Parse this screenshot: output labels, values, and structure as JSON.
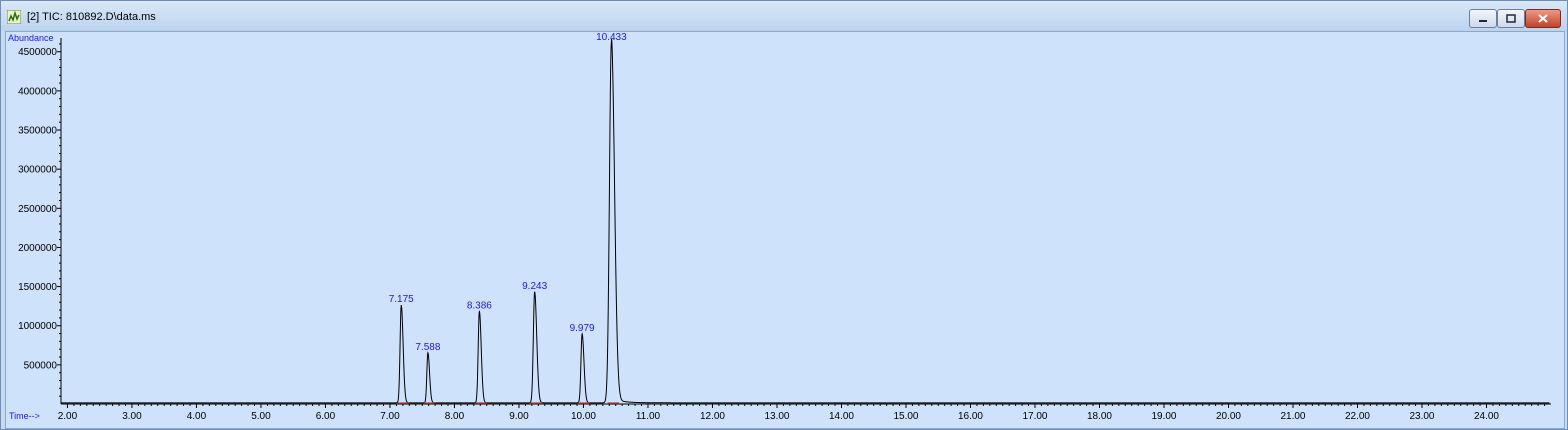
{
  "window": {
    "title": "[2] TIC: 810892.D\\data.ms",
    "icon": "chromatogram-icon"
  },
  "chart_data": {
    "type": "line",
    "title": "",
    "xlabel": "Time-->",
    "ylabel": "Abundance",
    "xlim": [
      1.9,
      25.0
    ],
    "ylim": [
      0,
      4650000
    ],
    "x_ticks": [
      "2.00",
      "3.00",
      "4.00",
      "5.00",
      "6.00",
      "7.00",
      "8.00",
      "9.00",
      "10.00",
      "11.00",
      "12.00",
      "13.00",
      "14.00",
      "15.00",
      "16.00",
      "17.00",
      "18.00",
      "19.00",
      "20.00",
      "21.00",
      "22.00",
      "23.00",
      "24.00"
    ],
    "y_ticks": [
      "500000",
      "1000000",
      "1500000",
      "2000000",
      "2500000",
      "3000000",
      "3500000",
      "4000000",
      "4500000"
    ],
    "peaks": [
      {
        "rt": 7.175,
        "label": "7.175",
        "abundance": 1250000
      },
      {
        "rt": 7.588,
        "label": "7.588",
        "abundance": 640000
      },
      {
        "rt": 8.386,
        "label": "8.386",
        "abundance": 1170000
      },
      {
        "rt": 9.243,
        "label": "9.243",
        "abundance": 1420000
      },
      {
        "rt": 9.979,
        "label": "9.979",
        "abundance": 880000
      },
      {
        "rt": 10.433,
        "label": "10.433",
        "abundance": 4600000
      }
    ],
    "series": [
      {
        "color": "#000000"
      }
    ],
    "grid": false
  }
}
